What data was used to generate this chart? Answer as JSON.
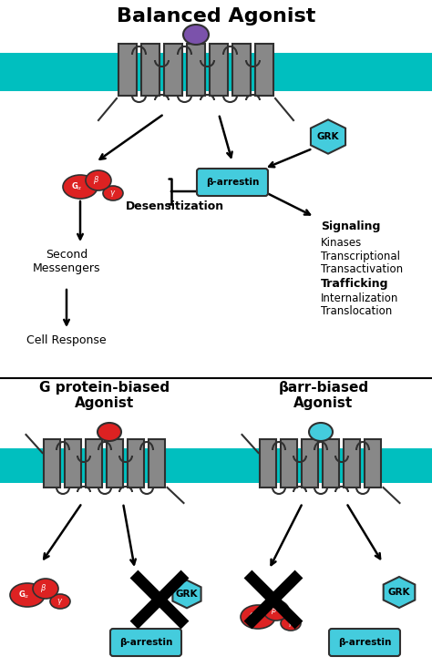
{
  "title_top": "Balanced Agonist",
  "membrane_color": "#00BFBF",
  "receptor_color": "#888888",
  "agonist_purple": "#7B52AB",
  "agonist_red": "#DD2222",
  "agonist_blue": "#44CCDD",
  "grk_color": "#44CCDD",
  "barrestin_color": "#44CCDD",
  "gprotein_color": "#DD2222",
  "text_color": "#000000",
  "background": "#FFFFFF",
  "left_title": "G protein-biased\nAgonist",
  "right_title": "βarr-biased\nAgonist"
}
